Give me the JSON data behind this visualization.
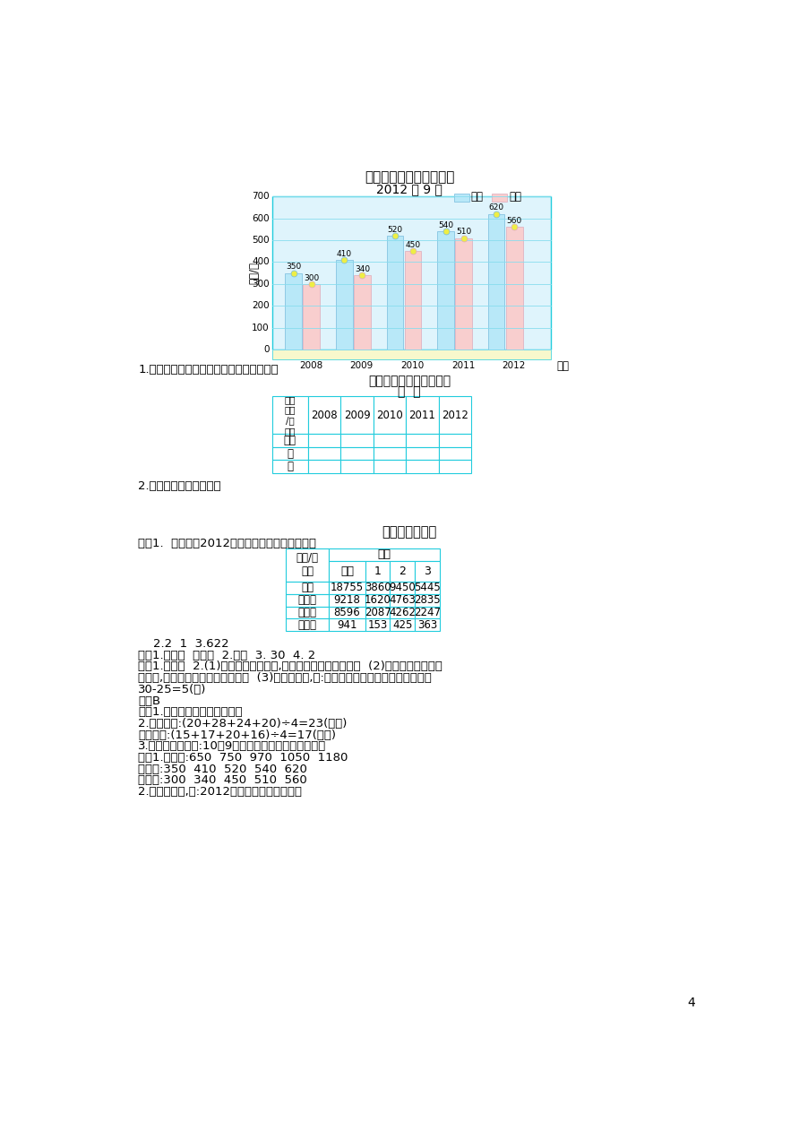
{
  "page_bg": "#ffffff",
  "title_chart": "育新学校学生人数统计图",
  "subtitle_chart": "2012 年 9 月",
  "ylabel_chart": "数量/人",
  "xlabel_chart": "年份",
  "years": [
    2008,
    2009,
    2010,
    2011,
    2012
  ],
  "male_values": [
    350,
    410,
    520,
    540,
    620
  ],
  "female_values": [
    300,
    340,
    450,
    510,
    560
  ],
  "male_color": "#b8e8f8",
  "female_color": "#f8cece",
  "chart_bg": "#dff4fc",
  "chart_floor_color": "#f8f8cc",
  "yticks": [
    0,
    100,
    200,
    300,
    400,
    500,
    600,
    700
  ],
  "legend_male": "男生",
  "legend_female": "女生",
  "table1_title": "育新学校学生人数统计表",
  "table1_subtitle": "年  月",
  "q1_text": "1.根据统计图中的数据填写下面的统计表。",
  "q2_text": "2.你还能发现哪些信息？",
  "answer_title": "单元测试卷答案",
  "answer_line1": "一、1.  新华书店2012年第一季度售书情况统计表",
  "table2_rows": [
    [
      "总计",
      "18755",
      "3860",
      "9450",
      "5445"
    ],
    [
      "文艺书",
      "9218",
      "1620",
      "4763",
      "2835"
    ],
    [
      "科技书",
      "8596",
      "2087",
      "4262",
      "2247"
    ],
    [
      "工具书",
      "941",
      "153",
      "425",
      "363"
    ]
  ],
  "answer_line2": "    2.2  1  3.622",
  "answer_line3": "二、1.小汽车  洋娃娃  2.跳棋  3. 30  4. 2",
  "answer_line4a": "三、1.画图略  2.(1)跳绳达标人数最多,仰卧起坐达标人数最少。  (2)男生跳绳达标的人",
  "answer_line4b": "数最多,女生跳绳达标的人数最多。  (3)答案不唯一,如:跳绳达标的女生比男生少多少人？",
  "answer_line5": "30-25=5(人)",
  "answer_line6": "四、B",
  "answer_line7": "五、1.京华日报发行量比较好。",
  "answer_line8": "2.京华日报:(20+28+24+20)÷4=23(万份)",
  "answer_line9": "南京日报:(15+17+20+16)÷4=17(万份)",
  "answer_line10": "3.答案不唯一，如:10月9日两种报纸发行量相差最大。",
  "answer_line11": "六、1.第一行:650  750  970  1050  1180",
  "answer_line12": "第二行:350  410  520  540  620",
  "answer_line13": "第三行:300  340  450  510  560",
  "answer_line14": "2.答案不唯一,如:2012年育新学校人数最多。",
  "page_num": "4",
  "table_border_color": "#22ccdd"
}
